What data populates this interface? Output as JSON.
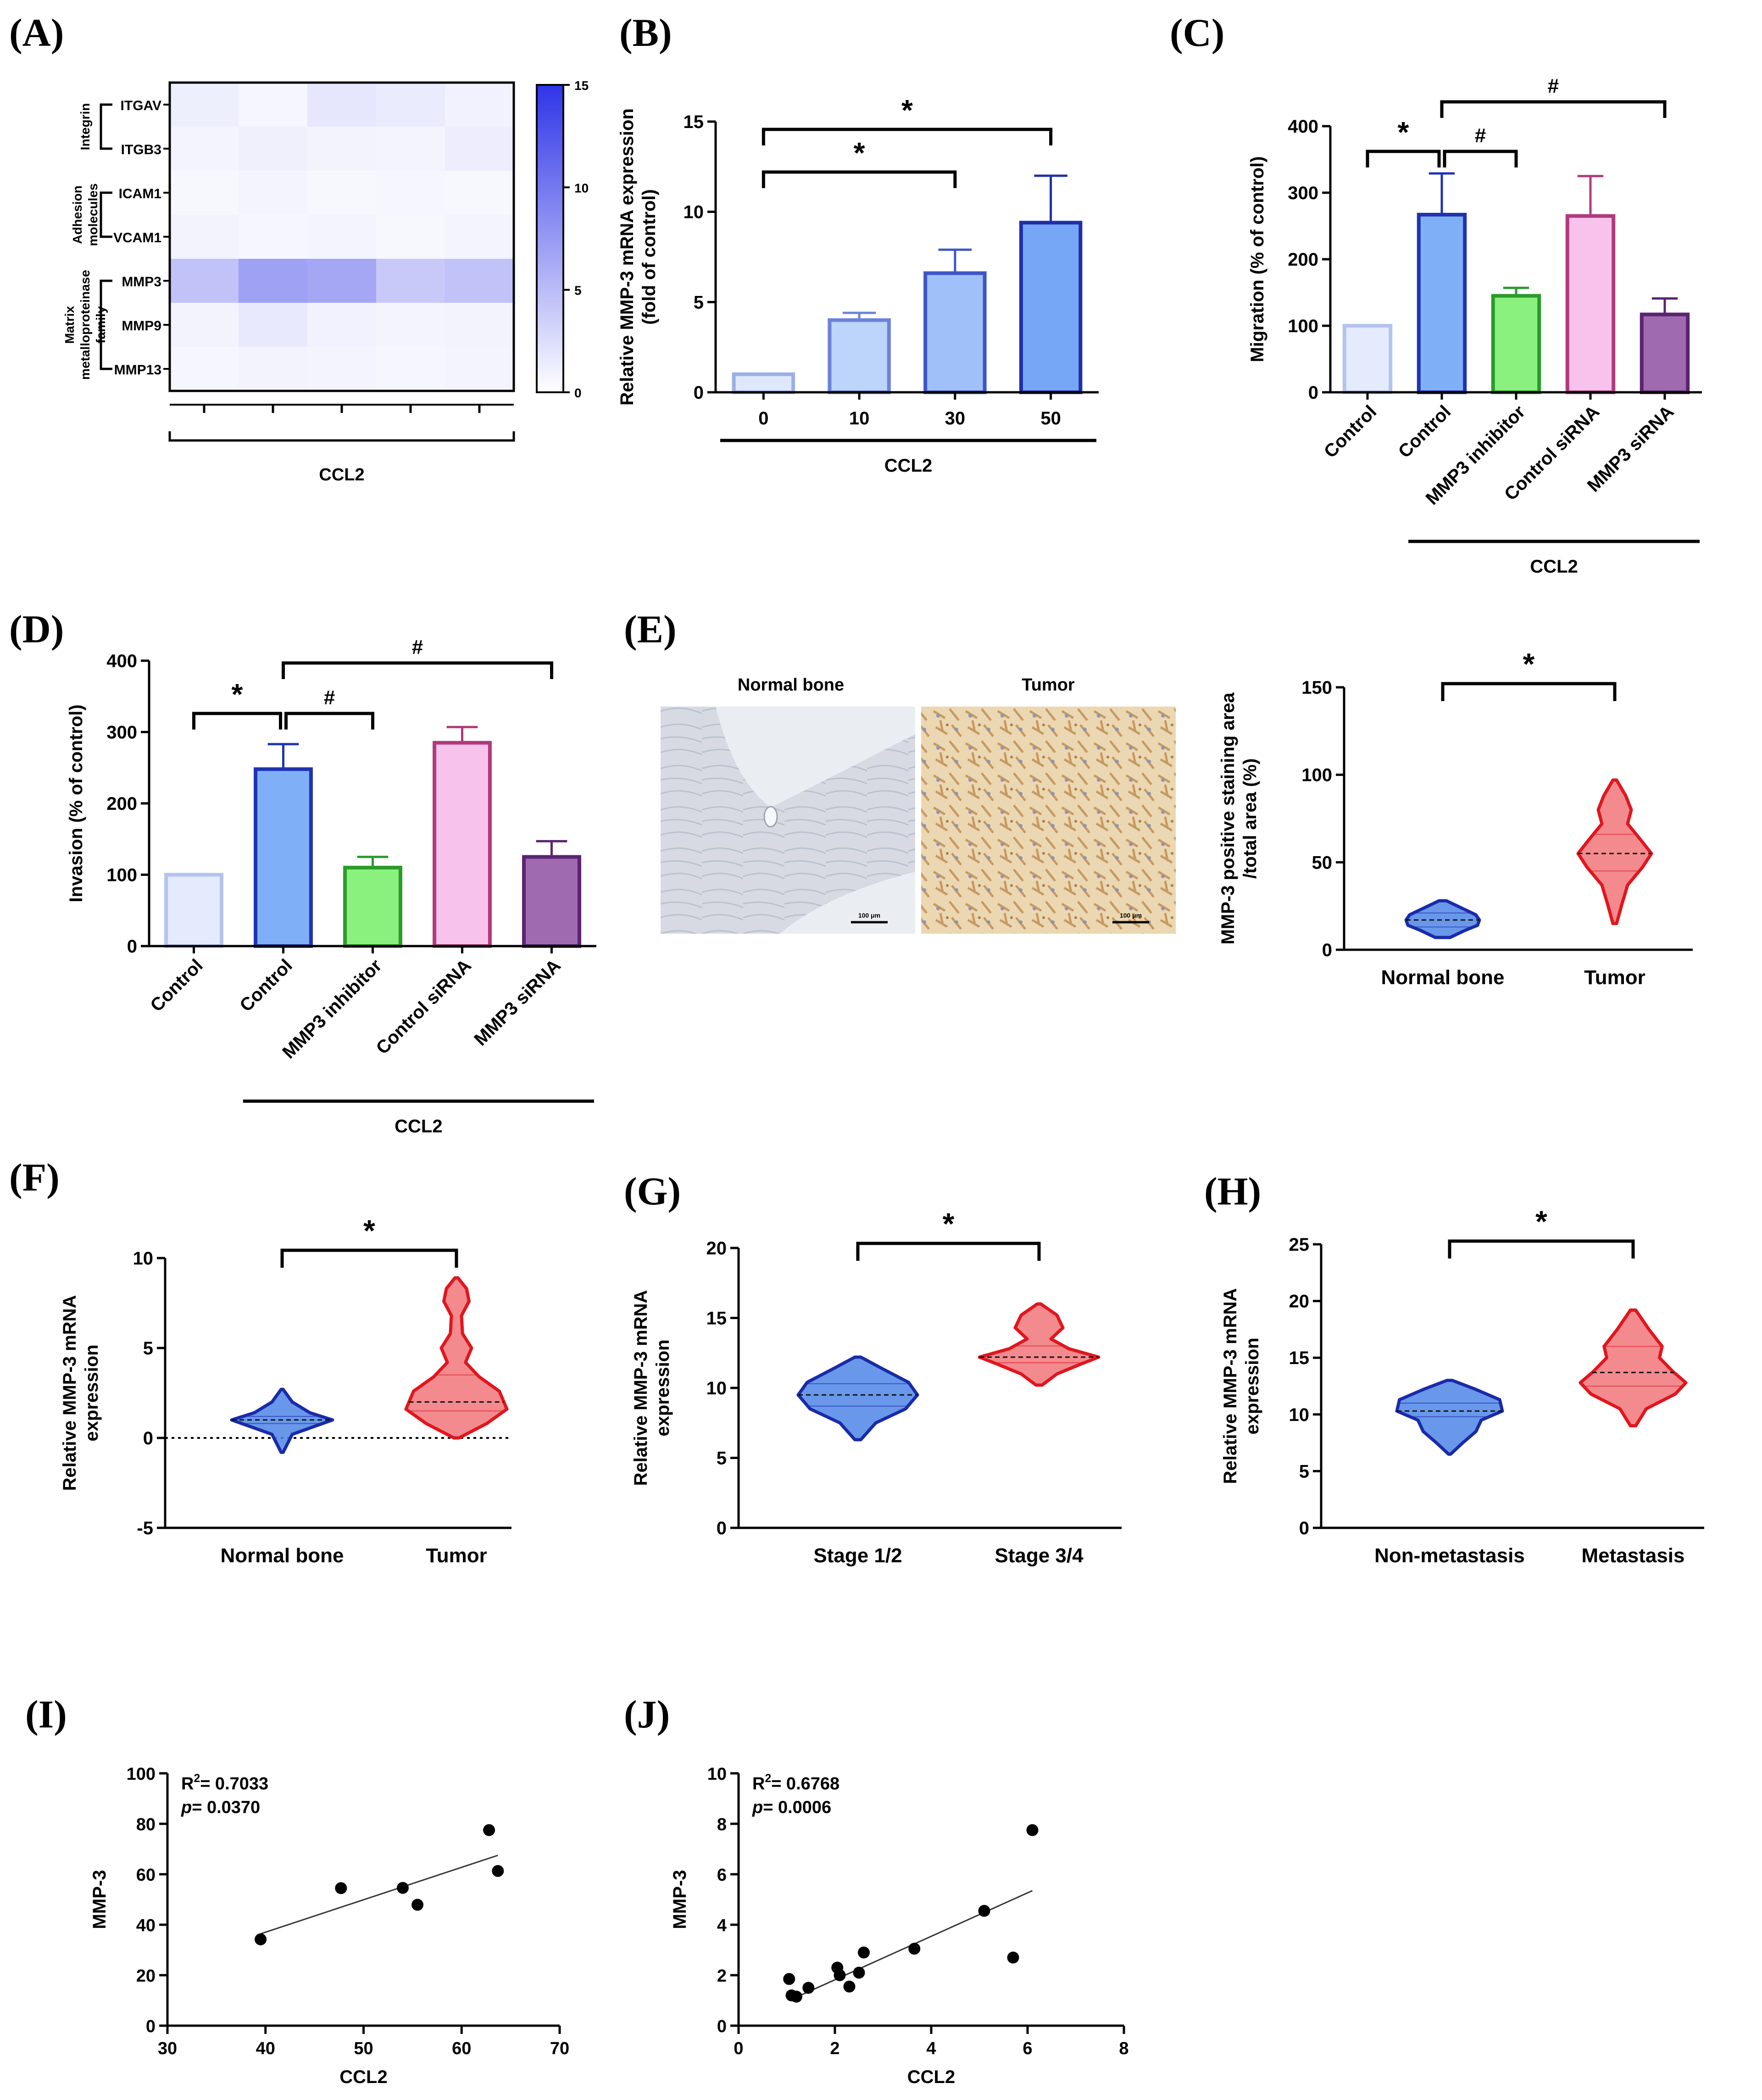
{
  "panel_labels": [
    "(A)",
    "(B)",
    "(C)",
    "(D)",
    "(E)",
    "(F)",
    "(G)",
    "(H)",
    "(I)",
    "(J)"
  ],
  "chart_data": [
    {
      "id": "A",
      "type": "heatmap",
      "rows": [
        "ITGAV",
        "ITGB3",
        "ICAM1",
        "VCAM1",
        "MMP3",
        "MMP9",
        "MMP13"
      ],
      "row_groups": [
        {
          "label": "Integrin",
          "rows": [
            "ITGAV",
            "ITGB3"
          ]
        },
        {
          "label": "Adhesion molecules",
          "lines": [
            "Adhesion",
            "molecules"
          ],
          "rows": [
            "ICAM1",
            "VCAM1"
          ]
        },
        {
          "label": "Matrix metalloproteinase family",
          "lines": [
            "Matrix",
            "metalloproteinase",
            "family"
          ],
          "rows": [
            "MMP3",
            "MMP9",
            "MMP13"
          ]
        }
      ],
      "n_columns": 5,
      "values": [
        [
          1.2,
          0.7,
          1.8,
          1.5,
          1.0
        ],
        [
          0.8,
          1.1,
          0.9,
          0.8,
          1.3
        ],
        [
          0.6,
          0.8,
          0.6,
          0.7,
          0.6
        ],
        [
          0.9,
          0.7,
          0.8,
          0.6,
          0.8
        ],
        [
          4.5,
          7.0,
          6.5,
          4.0,
          4.5
        ],
        [
          0.9,
          1.6,
          1.0,
          0.8,
          0.9
        ],
        [
          0.7,
          0.9,
          0.8,
          0.7,
          0.8
        ]
      ],
      "xlabel": "CCL2",
      "colorbar": {
        "min": 0,
        "max": 15,
        "ticks": [
          "0",
          "5",
          "10",
          "15"
        ],
        "low_color": "#ffffff",
        "high_color": "#2f35e8"
      }
    },
    {
      "id": "B",
      "type": "bar",
      "categories": [
        "0",
        "10",
        "30",
        "50"
      ],
      "values": [
        1.0,
        4.0,
        6.6,
        9.4
      ],
      "errors": [
        0,
        0.4,
        1.3,
        2.6
      ],
      "fills": [
        "#dfe8fb",
        "#bdd4fb",
        "#9fc0f9",
        "#76a7f6"
      ],
      "strokes": [
        "#9bb0e6",
        "#6c82d9",
        "#3f55c6",
        "#1f2fa8"
      ],
      "ylabel": [
        "Relative MMP-3 mRNA expression",
        "(fold of control)"
      ],
      "ylim": [
        0,
        15
      ],
      "yticks": [
        "0",
        "5",
        "10",
        "15"
      ],
      "group_label": "CCL2",
      "significance": [
        {
          "from": 0,
          "to": 2,
          "symbol": "*"
        },
        {
          "from": 0,
          "to": 3,
          "symbol": "*"
        }
      ]
    },
    {
      "id": "C",
      "type": "bar",
      "categories": [
        "Control",
        "Control",
        "MMP3 inhibitor",
        "Control siRNA",
        "MMP3 siRNA"
      ],
      "values": [
        100,
        267,
        145,
        265,
        117
      ],
      "errors": [
        0,
        62,
        12,
        60,
        24
      ],
      "fills": [
        "#e3ebfc",
        "#7fb0f7",
        "#8af07e",
        "#f7c3ec",
        "#a06ab0"
      ],
      "strokes": [
        "#b4c3ee",
        "#1f33b0",
        "#2b9b2b",
        "#b03a7c",
        "#5a2470"
      ],
      "ylabel": [
        "Migration (% of control)"
      ],
      "ylim": [
        0,
        400
      ],
      "yticks": [
        "0",
        "100",
        "200",
        "300",
        "400"
      ],
      "group_label": "CCL2",
      "significance": [
        {
          "from": 0,
          "to": 1,
          "symbol": "*"
        },
        {
          "from": 1,
          "to": 2,
          "symbol": "#"
        },
        {
          "from": 1,
          "to": 4,
          "symbol": "#"
        }
      ]
    },
    {
      "id": "D",
      "type": "bar",
      "categories": [
        "Control",
        "Control",
        "MMP3 inhibitor",
        "Control siRNA",
        "MMP3 siRNA"
      ],
      "values": [
        100,
        248,
        110,
        285,
        125
      ],
      "errors": [
        0,
        35,
        15,
        22,
        22
      ],
      "fills": [
        "#e3ebfc",
        "#7fb0f7",
        "#8af07e",
        "#f7c3ec",
        "#a06ab0"
      ],
      "strokes": [
        "#b4c3ee",
        "#1f33b0",
        "#2b9b2b",
        "#b03a7c",
        "#5a2470"
      ],
      "ylabel": [
        "Invasion (% of control)"
      ],
      "ylim": [
        0,
        400
      ],
      "yticks": [
        "0",
        "100",
        "200",
        "300",
        "400"
      ],
      "group_label": "CCL2",
      "significance": [
        {
          "from": 0,
          "to": 1,
          "symbol": "*"
        },
        {
          "from": 1,
          "to": 2,
          "symbol": "#"
        },
        {
          "from": 1,
          "to": 4,
          "symbol": "#"
        }
      ]
    },
    {
      "id": "E",
      "type": "violin",
      "images": [
        {
          "title": "Normal bone",
          "scale_bar": "100 μm"
        },
        {
          "title": "Tumor",
          "scale_bar": "100 μm"
        }
      ],
      "categories": [
        "Normal bone",
        "Tumor"
      ],
      "groups": [
        {
          "min": 7,
          "max": 28,
          "median": 17,
          "q1": 13,
          "q3": 21,
          "shape": [
            [
              7,
              0.2
            ],
            [
              11,
              0.6
            ],
            [
              14,
              0.95
            ],
            [
              17,
              1.0
            ],
            [
              20,
              0.9
            ],
            [
              24,
              0.5
            ],
            [
              28,
              0.1
            ]
          ]
        },
        {
          "min": 15,
          "max": 97,
          "median": 55,
          "q1": 45,
          "q3": 66,
          "shape": [
            [
              15,
              0.05
            ],
            [
              25,
              0.18
            ],
            [
              37,
              0.35
            ],
            [
              47,
              0.75
            ],
            [
              55,
              1.0
            ],
            [
              63,
              0.7
            ],
            [
              72,
              0.35
            ],
            [
              80,
              0.45
            ],
            [
              88,
              0.3
            ],
            [
              97,
              0.05
            ]
          ]
        }
      ],
      "ylabel": [
        "MMP-3 positive staining area",
        "/total area (%)"
      ],
      "ylim": [
        0,
        150
      ],
      "yticks": [
        "0",
        "50",
        "100",
        "150"
      ],
      "significance": [
        {
          "from": 0,
          "to": 1,
          "symbol": "*"
        }
      ]
    },
    {
      "id": "F",
      "type": "violin",
      "categories": [
        "Normal bone",
        "Tumor"
      ],
      "groups": [
        {
          "min": -0.8,
          "max": 2.7,
          "median": 1.0,
          "q1": 0.8,
          "q3": 1.2,
          "shape": [
            [
              -0.8,
              0.02
            ],
            [
              0.2,
              0.2
            ],
            [
              0.6,
              0.6
            ],
            [
              1.0,
              1.0
            ],
            [
              1.4,
              0.55
            ],
            [
              2.0,
              0.2
            ],
            [
              2.7,
              0.02
            ]
          ]
        },
        {
          "min": 0.0,
          "max": 8.9,
          "median": 2.0,
          "q1": 1.5,
          "q3": 3.5,
          "shape": [
            [
              0.0,
              0.05
            ],
            [
              0.8,
              0.6
            ],
            [
              1.6,
              1.0
            ],
            [
              2.6,
              0.85
            ],
            [
              3.4,
              0.45
            ],
            [
              4.2,
              0.18
            ],
            [
              5.0,
              0.3
            ],
            [
              5.8,
              0.12
            ],
            [
              6.8,
              0.1
            ],
            [
              7.6,
              0.25
            ],
            [
              8.3,
              0.2
            ],
            [
              8.9,
              0.03
            ]
          ]
        }
      ],
      "ylabel": [
        "Relative MMP-3 mRNA",
        "expression"
      ],
      "ylim": [
        -5,
        10
      ],
      "yticks": [
        "-5",
        "0",
        "5",
        "10"
      ],
      "zero_line": true,
      "significance": [
        {
          "from": 0,
          "to": 1,
          "symbol": "*"
        }
      ]
    },
    {
      "id": "G",
      "type": "violin",
      "categories": [
        "Stage 1/2",
        "Stage 3/4"
      ],
      "groups": [
        {
          "min": 6.3,
          "max": 12.2,
          "median": 9.5,
          "q1": 8.7,
          "q3": 10.3,
          "shape": [
            [
              6.3,
              0.05
            ],
            [
              7.5,
              0.3
            ],
            [
              8.5,
              0.8
            ],
            [
              9.5,
              1.0
            ],
            [
              10.4,
              0.85
            ],
            [
              11.4,
              0.4
            ],
            [
              12.2,
              0.05
            ]
          ]
        },
        {
          "min": 10.2,
          "max": 16.0,
          "median": 12.2,
          "q1": 11.8,
          "q3": 13.0,
          "shape": [
            [
              10.2,
              0.05
            ],
            [
              11.0,
              0.3
            ],
            [
              11.7,
              0.7
            ],
            [
              12.2,
              1.0
            ],
            [
              12.8,
              0.5
            ],
            [
              13.5,
              0.2
            ],
            [
              14.3,
              0.4
            ],
            [
              15.2,
              0.3
            ],
            [
              16.0,
              0.03
            ]
          ]
        }
      ],
      "ylabel": [
        "Relative MMP-3 mRNA",
        "expression"
      ],
      "ylim": [
        0,
        20
      ],
      "yticks": [
        "0",
        "5",
        "10",
        "15",
        "20"
      ],
      "significance": [
        {
          "from": 0,
          "to": 1,
          "symbol": "*"
        }
      ]
    },
    {
      "id": "H",
      "type": "violin",
      "categories": [
        "Non-metastasis",
        "Metastasis"
      ],
      "groups": [
        {
          "min": 6.5,
          "max": 13.0,
          "median": 10.3,
          "q1": 9.8,
          "q3": 11.0,
          "shape": [
            [
              6.5,
              0.02
            ],
            [
              7.5,
              0.25
            ],
            [
              8.5,
              0.5
            ],
            [
              9.5,
              0.6
            ],
            [
              10.3,
              1.0
            ],
            [
              11.3,
              0.95
            ],
            [
              12.2,
              0.5
            ],
            [
              13.0,
              0.05
            ]
          ]
        },
        {
          "min": 9.0,
          "max": 19.2,
          "median": 13.7,
          "q1": 12.5,
          "q3": 16.0,
          "shape": [
            [
              9.0,
              0.05
            ],
            [
              10.5,
              0.25
            ],
            [
              11.8,
              0.8
            ],
            [
              12.8,
              1.0
            ],
            [
              13.8,
              0.75
            ],
            [
              15.0,
              0.5
            ],
            [
              16.0,
              0.55
            ],
            [
              17.5,
              0.3
            ],
            [
              19.2,
              0.05
            ]
          ]
        }
      ],
      "ylabel": [
        "Relative MMP-3 mRNA",
        "expression"
      ],
      "ylim": [
        0,
        25
      ],
      "yticks": [
        "0",
        "5",
        "10",
        "15",
        "20",
        "25"
      ],
      "significance": [
        {
          "from": 0,
          "to": 1,
          "symbol": "*"
        }
      ]
    },
    {
      "id": "I",
      "type": "scatter",
      "x": [
        39.5,
        47.7,
        54.0,
        55.5,
        62.8,
        63.7
      ],
      "y": [
        34.2,
        54.5,
        54.6,
        47.9,
        77.5,
        61.3
      ],
      "fit": {
        "x": [
          39.5,
          63.7
        ],
        "y": [
          36.4,
          67.5
        ]
      },
      "xlabel": "CCL2",
      "ylabel": "MMP-3",
      "xlim": [
        30,
        70
      ],
      "ylim": [
        0,
        100
      ],
      "xticks": [
        "30",
        "40",
        "50",
        "60",
        "70"
      ],
      "yticks": [
        "0",
        "20",
        "40",
        "60",
        "80",
        "100"
      ],
      "annotation": {
        "r2_prefix": "R",
        "r2_sup": "2",
        "r2_text": "= 0.7033",
        "p_label": "p",
        "p_text": "= 0.0370"
      }
    },
    {
      "id": "J",
      "type": "scatter",
      "x": [
        1.05,
        1.1,
        1.2,
        1.45,
        2.05,
        2.1,
        2.3,
        2.5,
        2.6,
        3.65,
        5.1,
        5.7,
        6.1
      ],
      "y": [
        1.85,
        1.2,
        1.15,
        1.5,
        2.3,
        2.0,
        1.55,
        2.1,
        2.9,
        3.05,
        4.55,
        2.7,
        7.75
      ],
      "fit": {
        "x": [
          1.05,
          6.1
        ],
        "y": [
          1.0,
          5.35
        ]
      },
      "xlabel": "CCL2",
      "ylabel": "MMP-3",
      "xlim": [
        0,
        8
      ],
      "ylim": [
        0,
        10
      ],
      "xticks": [
        "0",
        "2",
        "4",
        "6",
        "8"
      ],
      "yticks": [
        "0",
        "2",
        "4",
        "6",
        "8",
        "10"
      ],
      "annotation": {
        "r2_prefix": "R",
        "r2_sup": "2",
        "r2_text": "= 0.6768",
        "p_label": "p",
        "p_text": "= 0.0006"
      }
    }
  ]
}
